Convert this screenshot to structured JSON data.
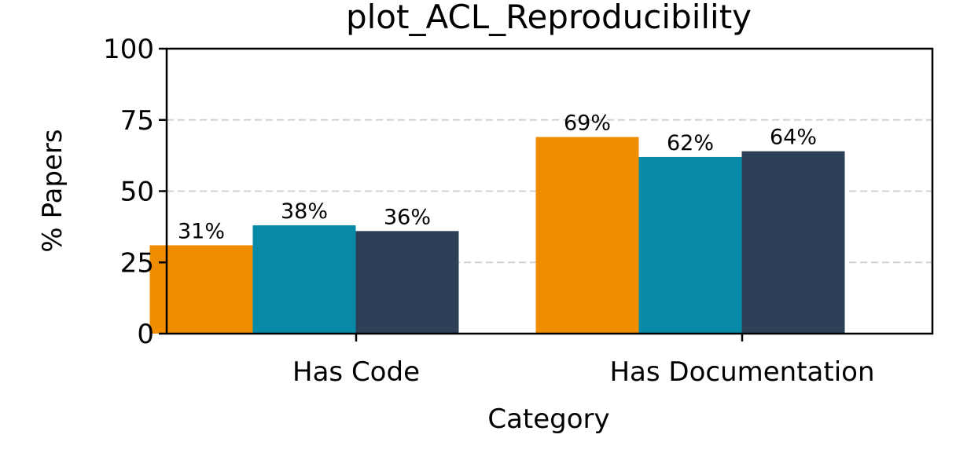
{
  "chart_data": {
    "type": "bar",
    "title": "plot_ACL_Reproducibility",
    "xlabel": "Category",
    "ylabel": "% Papers",
    "categories": [
      "Has Code",
      "Has Documentation"
    ],
    "series": [
      {
        "values": [
          31,
          69
        ],
        "labels": [
          "31%",
          "69%"
        ],
        "color": "#f08c00"
      },
      {
        "values": [
          38,
          62
        ],
        "labels": [
          "38%",
          "62%"
        ],
        "color": "#068aa8"
      },
      {
        "values": [
          36,
          64
        ],
        "labels": [
          "36%",
          "64%"
        ],
        "color": "#2e4057"
      }
    ],
    "ylim": [
      0,
      100
    ],
    "yticks": [
      0,
      25,
      50,
      75,
      100
    ],
    "grid": "y-dashed",
    "legend": "none"
  }
}
